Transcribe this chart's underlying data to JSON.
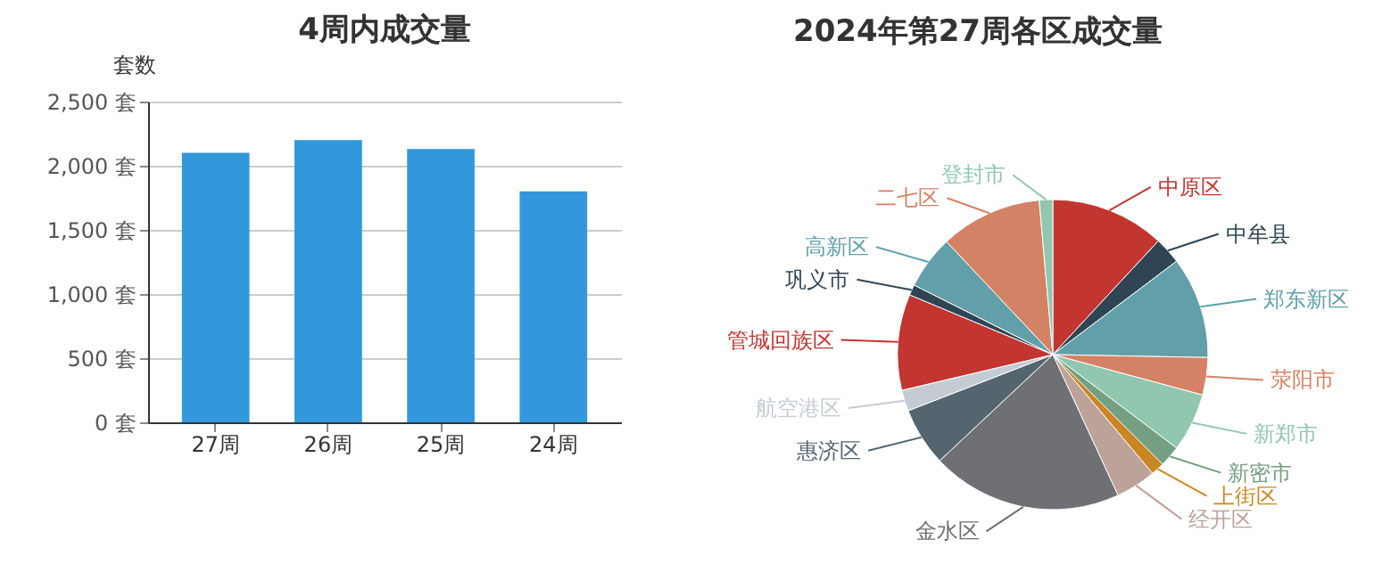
{
  "chart_data": [
    {
      "type": "bar",
      "title": "4周内成交量",
      "ylabel": "套数",
      "categories": [
        "27周",
        "26周",
        "25周",
        "24周"
      ],
      "values": [
        2100,
        2200,
        2130,
        1800
      ],
      "color": "#3398db",
      "ylim": [
        0,
        2500
      ],
      "yticks": [
        {
          "value": 0,
          "label": "0 套"
        },
        {
          "value": 500,
          "label": "500 套"
        },
        {
          "value": 1000,
          "label": "1,000 套"
        },
        {
          "value": 1500,
          "label": "1,500 套"
        },
        {
          "value": 2000,
          "label": "2,000 套"
        },
        {
          "value": 2500,
          "label": "2,500 套"
        }
      ],
      "grid": "y",
      "legend": false
    },
    {
      "type": "pie",
      "title": "2024年第27周各区成交量",
      "categories": [
        "中原区",
        "中牟县",
        "郑东新区",
        "荥阳市",
        "新郑市",
        "新密市",
        "上街区",
        "经开区",
        "金水区",
        "惠济区",
        "航空港区",
        "管城回族区",
        "巩义市",
        "高新区",
        "二七区",
        "登封市"
      ],
      "values": [
        11.9,
        2.8,
        10.6,
        3.9,
        6.1,
        2.2,
        1.4,
        4.2,
        19.9,
        6.1,
        2.2,
        10.0,
        1.1,
        5.6,
        10.6,
        1.4
      ],
      "colors": [
        "#c23531",
        "#2f4554",
        "#61a0a8",
        "#d48265",
        "#91c7ae",
        "#749f83",
        "#ca8622",
        "#bda29a",
        "#6e7074",
        "#546570",
        "#c4ccd3",
        "#c23531",
        "#2f4554",
        "#61a0a8",
        "#d48265",
        "#91c7ae"
      ],
      "legend": false
    }
  ]
}
